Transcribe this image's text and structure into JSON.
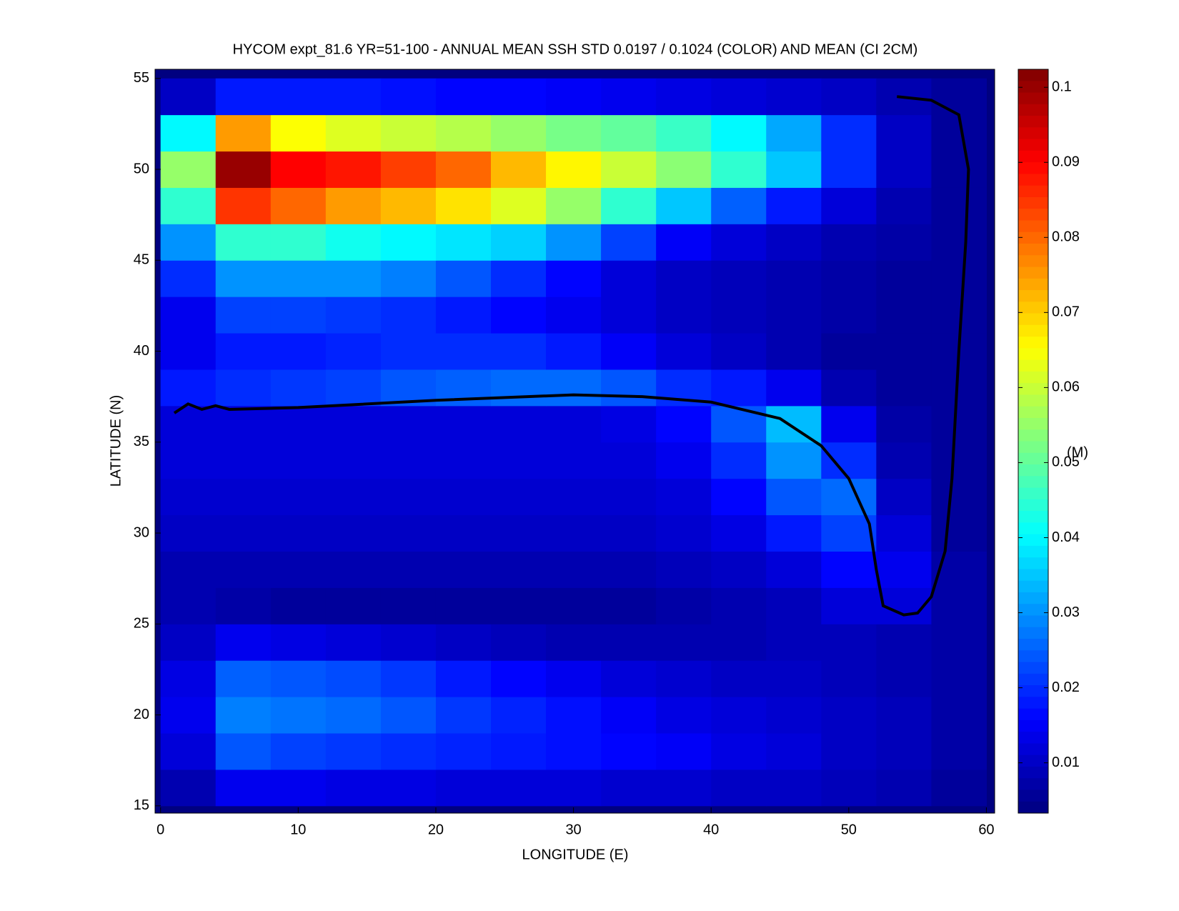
{
  "chart_data": {
    "type": "heatmap",
    "title": "HYCOM expt_81.6 YR=51-100 - ANNUAL MEAN SSH STD 0.0197 / 0.1024 (COLOR) AND MEAN (CI 2CM)",
    "x_label": "LONGITUDE (E)",
    "y_label": "LATITUDE (N)",
    "colorbar_label": "(M)",
    "colormap": "jet",
    "x": [
      2,
      6,
      10,
      14,
      18,
      22,
      26,
      30,
      34,
      38,
      42,
      46,
      50,
      54,
      58
    ],
    "y": [
      16,
      18,
      20,
      22,
      24,
      26,
      28,
      30,
      32,
      34,
      36,
      38,
      40,
      42,
      44,
      46,
      48,
      50,
      52,
      54
    ],
    "z": [
      [
        0.008,
        0.014,
        0.014,
        0.013,
        0.013,
        0.012,
        0.012,
        0.012,
        0.011,
        0.011,
        0.01,
        0.01,
        0.009,
        0.008,
        0.006
      ],
      [
        0.012,
        0.024,
        0.022,
        0.021,
        0.02,
        0.019,
        0.018,
        0.017,
        0.016,
        0.015,
        0.013,
        0.012,
        0.01,
        0.009,
        0.007
      ],
      [
        0.014,
        0.028,
        0.027,
        0.026,
        0.024,
        0.021,
        0.019,
        0.017,
        0.015,
        0.013,
        0.012,
        0.011,
        0.01,
        0.009,
        0.007
      ],
      [
        0.013,
        0.025,
        0.024,
        0.023,
        0.021,
        0.018,
        0.016,
        0.014,
        0.012,
        0.011,
        0.01,
        0.01,
        0.009,
        0.008,
        0.007
      ],
      [
        0.01,
        0.014,
        0.013,
        0.012,
        0.011,
        0.01,
        0.009,
        0.008,
        0.008,
        0.008,
        0.008,
        0.009,
        0.009,
        0.008,
        0.007
      ],
      [
        0.008,
        0.007,
        0.006,
        0.006,
        0.006,
        0.006,
        0.006,
        0.006,
        0.006,
        0.007,
        0.008,
        0.009,
        0.012,
        0.012,
        0.007
      ],
      [
        0.008,
        0.008,
        0.008,
        0.008,
        0.008,
        0.008,
        0.008,
        0.008,
        0.008,
        0.009,
        0.01,
        0.012,
        0.016,
        0.014,
        0.007
      ],
      [
        0.01,
        0.01,
        0.01,
        0.01,
        0.01,
        0.01,
        0.01,
        0.01,
        0.01,
        0.011,
        0.013,
        0.018,
        0.022,
        0.012,
        0.006
      ],
      [
        0.011,
        0.011,
        0.011,
        0.011,
        0.011,
        0.011,
        0.011,
        0.011,
        0.011,
        0.012,
        0.016,
        0.024,
        0.026,
        0.01,
        0.006
      ],
      [
        0.012,
        0.012,
        0.012,
        0.012,
        0.012,
        0.012,
        0.012,
        0.012,
        0.012,
        0.014,
        0.02,
        0.03,
        0.02,
        0.008,
        0.006
      ],
      [
        0.012,
        0.012,
        0.012,
        0.012,
        0.012,
        0.012,
        0.012,
        0.012,
        0.013,
        0.016,
        0.024,
        0.034,
        0.014,
        0.007,
        0.006
      ],
      [
        0.018,
        0.02,
        0.021,
        0.022,
        0.024,
        0.025,
        0.026,
        0.026,
        0.024,
        0.02,
        0.018,
        0.014,
        0.008,
        0.006,
        0.006
      ],
      [
        0.014,
        0.018,
        0.018,
        0.019,
        0.02,
        0.02,
        0.02,
        0.018,
        0.015,
        0.012,
        0.01,
        0.008,
        0.006,
        0.006,
        0.006
      ],
      [
        0.014,
        0.022,
        0.022,
        0.021,
        0.02,
        0.018,
        0.016,
        0.014,
        0.012,
        0.01,
        0.009,
        0.008,
        0.007,
        0.006,
        0.006
      ],
      [
        0.02,
        0.03,
        0.03,
        0.03,
        0.028,
        0.024,
        0.02,
        0.016,
        0.012,
        0.01,
        0.009,
        0.008,
        0.007,
        0.006,
        0.006
      ],
      [
        0.03,
        0.045,
        0.045,
        0.042,
        0.04,
        0.038,
        0.036,
        0.03,
        0.022,
        0.015,
        0.012,
        0.01,
        0.008,
        0.007,
        0.006
      ],
      [
        0.045,
        0.085,
        0.08,
        0.075,
        0.072,
        0.068,
        0.062,
        0.055,
        0.045,
        0.035,
        0.025,
        0.018,
        0.012,
        0.008,
        0.006
      ],
      [
        0.055,
        0.1,
        0.09,
        0.088,
        0.084,
        0.08,
        0.072,
        0.066,
        0.06,
        0.054,
        0.045,
        0.035,
        0.02,
        0.01,
        0.006
      ],
      [
        0.04,
        0.075,
        0.065,
        0.062,
        0.06,
        0.058,
        0.055,
        0.052,
        0.05,
        0.046,
        0.04,
        0.032,
        0.02,
        0.01,
        0.006
      ],
      [
        0.01,
        0.018,
        0.018,
        0.018,
        0.017,
        0.016,
        0.016,
        0.015,
        0.014,
        0.013,
        0.012,
        0.011,
        0.01,
        0.008,
        0.006
      ]
    ],
    "xlim": [
      -0.4,
      60.6
    ],
    "ylim": [
      14.6,
      55.5
    ],
    "xticks": [
      0,
      10,
      20,
      30,
      40,
      50,
      60
    ],
    "yticks": [
      15,
      20,
      25,
      30,
      35,
      40,
      45,
      50,
      55
    ],
    "clim": [
      0.0033,
      0.1024
    ],
    "cticks": [
      0.01,
      0.02,
      0.03,
      0.04,
      0.05,
      0.06,
      0.07,
      0.08,
      0.09,
      0.1
    ],
    "contours": [
      {
        "x": [
          1,
          2,
          3,
          4,
          5,
          10,
          20,
          30,
          35,
          40,
          45,
          48,
          50,
          51.5,
          52,
          52.5,
          54,
          55,
          56,
          57,
          57.5,
          58,
          58.5,
          58.7,
          58,
          56,
          53.5
        ],
        "y": [
          36.6,
          37.1,
          36.8,
          37,
          36.8,
          36.9,
          37.3,
          37.6,
          37.5,
          37.2,
          36.3,
          34.8,
          33,
          30.5,
          28,
          26,
          25.5,
          25.6,
          26.5,
          29,
          33,
          40,
          46,
          50,
          53,
          53.8,
          54
        ]
      }
    ]
  }
}
